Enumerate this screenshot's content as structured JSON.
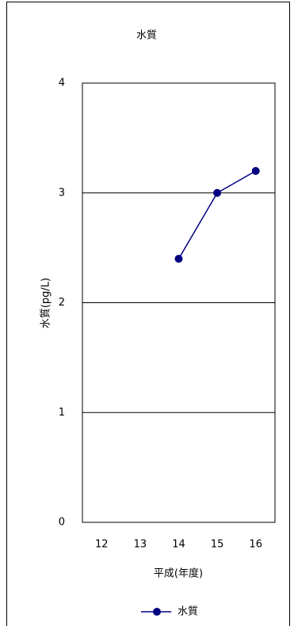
{
  "chart_data": {
    "type": "line",
    "title": "水質",
    "categories": [
      "12",
      "13",
      "14",
      "15",
      "16"
    ],
    "series": [
      {
        "name": "水質",
        "color": "#000080",
        "values": [
          null,
          null,
          2.4,
          3.0,
          3.2
        ]
      }
    ],
    "ylim": [
      0,
      4
    ],
    "yticks": [
      0,
      1,
      2,
      3,
      4
    ],
    "grid": true,
    "xlabel": "平成(年度)",
    "ylabel": "水質(pg/L)",
    "legend": "bottom"
  }
}
